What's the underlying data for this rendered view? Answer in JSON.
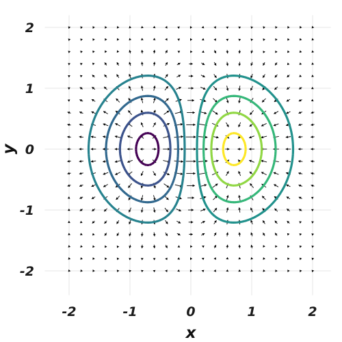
{
  "chart_data": {
    "type": "contour+vector-field",
    "xlabel": "x",
    "ylabel": "y",
    "xlim": [
      -2.4,
      2.3
    ],
    "ylim": [
      -2.4,
      2.2
    ],
    "xticks": [
      -2,
      -1,
      0,
      1,
      2
    ],
    "yticks": [
      -2,
      -1,
      0,
      1,
      2
    ],
    "xtick_labels": [
      "-2",
      "-1",
      "0",
      "1",
      "2"
    ],
    "ytick_labels": [
      "-2",
      "-1",
      "0",
      "1",
      "2"
    ],
    "grid": true,
    "field": "f(x,y) = x * exp(-(x^2 + y^2))",
    "contour_levels": [
      -0.4,
      -0.3,
      -0.2,
      -0.1,
      0.1,
      0.2,
      0.3,
      0.4
    ],
    "contour_colors": [
      "#440154",
      "#3b528b",
      "#31688e",
      "#26828e",
      "#21918c",
      "#35b779",
      "#90d743",
      "#fde725"
    ],
    "quiver": {
      "x_range": [
        -2,
        2
      ],
      "y_range": [
        -2,
        2
      ],
      "step": 0.2,
      "vector": "gradient of f",
      "arrow_color": "#000000"
    }
  }
}
